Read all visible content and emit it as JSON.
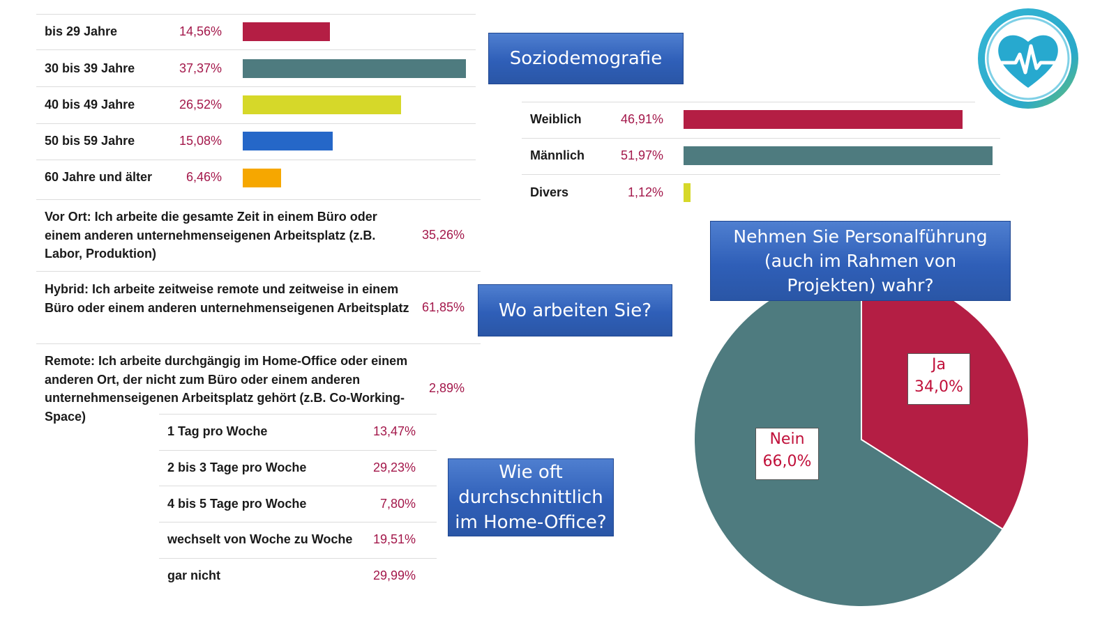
{
  "age": {
    "rows": [
      {
        "label": "bis 29 Jahre",
        "pct": "14,56%",
        "value": 14.56,
        "color": "#b41e44"
      },
      {
        "label": "30 bis 39 Jahre",
        "pct": "37,37%",
        "value": 37.37,
        "color": "#4e7b7f"
      },
      {
        "label": "40 bis 49 Jahre",
        "pct": "26,52%",
        "value": 26.52,
        "color": "#d6d829"
      },
      {
        "label": "50 bis 59 Jahre",
        "pct": "15,08%",
        "value": 15.08,
        "color": "#2567c8"
      },
      {
        "label": "60 Jahre und älter",
        "pct": "6,46%",
        "value": 6.46,
        "color": "#f6a700"
      }
    ]
  },
  "gender": {
    "rows": [
      {
        "label": "Weiblich",
        "pct": "46,91%",
        "value": 46.91,
        "color": "#b41e44"
      },
      {
        "label": "Männlich",
        "pct": "51,97%",
        "value": 51.97,
        "color": "#4e7b7f"
      },
      {
        "label": "Divers",
        "pct": "1,12%",
        "value": 1.12,
        "color": "#d6d829"
      }
    ]
  },
  "workplace": {
    "rows": [
      {
        "text": "Vor Ort: Ich arbeite die gesamte Zeit in einem Büro oder einem anderen unternehmenseigenen Arbeitsplatz (z.B. Labor, Produktion)",
        "pct": "35,26%"
      },
      {
        "text": "Hybrid: Ich arbeite zeitweise remote und zeitweise in einem Büro oder einem anderen unternehmenseigenen Arbeitsplatz",
        "pct": "61,85%"
      },
      {
        "text": "Remote: Ich arbeite durchgängig im Home-Office oder einem anderen Ort, der nicht zum Büro oder einem anderen unternehmenseigenen Arbeitsplatz gehört (z.B. Co-Working-Space)",
        "pct": "2,89%"
      }
    ]
  },
  "homeoffice": {
    "rows": [
      {
        "label": "1 Tag pro Woche",
        "pct": "13,47%"
      },
      {
        "label": "2 bis 3 Tage pro Woche",
        "pct": "29,23%"
      },
      {
        "label": "4 bis 5 Tage pro Woche",
        "pct": "7,80%"
      },
      {
        "label": "wechselt von Woche zu Woche",
        "pct": "19,51%"
      },
      {
        "label": "gar nicht",
        "pct": "29,99%"
      }
    ]
  },
  "boxes": {
    "soziodemografie": "Soziodemografie",
    "wo_arbeiten": "Wo arbeiten Sie?",
    "wie_oft": "Wie oft durchschnittlich im Home-Office?",
    "personalfuehrung": "Nehmen Sie Personalführung (auch im Rahmen von Projekten) wahr?"
  },
  "logo": {
    "icon": "heart-pulse-icon",
    "ring_color": "#2aa9c9",
    "heart_color": "#27a9cf"
  },
  "chart_data": [
    {
      "type": "bar",
      "categories": [
        "bis 29 Jahre",
        "30 bis 39 Jahre",
        "40 bis 49 Jahre",
        "50 bis 59 Jahre",
        "60 Jahre und älter"
      ],
      "values": [
        14.56,
        37.37,
        26.52,
        15.08,
        6.46
      ]
    },
    {
      "type": "bar",
      "categories": [
        "Weiblich",
        "Männlich",
        "Divers"
      ],
      "values": [
        46.91,
        51.97,
        1.12
      ]
    },
    {
      "type": "table",
      "categories": [
        "Vor Ort",
        "Hybrid",
        "Remote"
      ],
      "values": [
        35.26,
        61.85,
        2.89
      ]
    },
    {
      "type": "table",
      "categories": [
        "1 Tag pro Woche",
        "2 bis 3 Tage pro Woche",
        "4 bis 5 Tage pro Woche",
        "wechselt von Woche zu Woche",
        "gar nicht"
      ],
      "values": [
        13.47,
        29.23,
        7.8,
        19.51,
        29.99
      ]
    },
    {
      "type": "pie",
      "title": "Nehmen Sie Personalführung (auch im Rahmen von Projekten) wahr?",
      "categories": [
        "Ja",
        "Nein"
      ],
      "values": [
        34.0,
        66.0
      ],
      "labels": [
        "34,0%",
        "66,0%"
      ],
      "colors": [
        "#b41e44",
        "#4e7b7f"
      ]
    }
  ]
}
